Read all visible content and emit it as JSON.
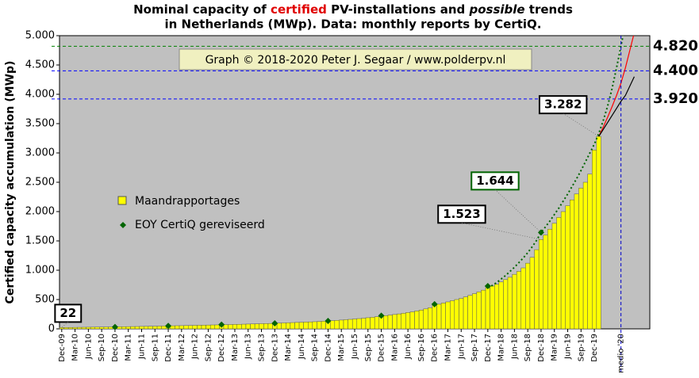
{
  "chart_data": {
    "type": "bar",
    "title": [
      "Nominal capacity of ",
      "certified",
      " PV-installations and ",
      "possible",
      " trends",
      "in Netherlands (MWp). Data: monthly reports by CertiQ."
    ],
    "y_label": "Certified capacity accumulation (MWp)",
    "watermark": "Graph © 2018-2020 Peter J. Segaar / www.polderpv.nl",
    "ylim": [
      0,
      5000
    ],
    "yticks": [
      0,
      500,
      {
        "value": 1000,
        "label": "1.000"
      },
      {
        "value": 1500,
        "label": "1.500"
      },
      {
        "value": 2000,
        "label": "2.000"
      },
      {
        "value": 2500,
        "label": "2.500"
      },
      {
        "value": 3000,
        "label": "3.000"
      },
      {
        "value": 3500,
        "label": "3.500"
      },
      {
        "value": 4000,
        "label": "4.000"
      },
      {
        "value": 4500,
        "label": "4.500"
      },
      {
        "value": 5000,
        "label": "5.000"
      }
    ],
    "categories": [
      "Dec-09",
      null,
      null,
      "Mar-10",
      null,
      null,
      "Jun-10",
      null,
      null,
      "Sep-10",
      null,
      null,
      "Dec-10",
      null,
      null,
      "Mar-11",
      null,
      null,
      "Jun-11",
      null,
      null,
      "Sep-11",
      null,
      null,
      "Dec-11",
      null,
      null,
      "Mar-12",
      null,
      null,
      "Jun-12",
      null,
      null,
      "Sep-12",
      null,
      null,
      "Dec-12",
      null,
      null,
      "Mar-13",
      null,
      null,
      "Jun-13",
      null,
      null,
      "Sep-13",
      null,
      null,
      "Dec-13",
      null,
      null,
      "Mar-14",
      null,
      null,
      "Jun-14",
      null,
      null,
      "Sep-14",
      null,
      null,
      "Dec-14",
      null,
      null,
      "Mar-15",
      null,
      null,
      "Jun-15",
      null,
      null,
      "Sep-15",
      null,
      null,
      "Dec-15",
      null,
      null,
      "Mar-16",
      null,
      null,
      "Jun-16",
      null,
      null,
      "Sep-16",
      null,
      null,
      "Dec-16",
      null,
      null,
      "Mar-17",
      null,
      null,
      "Jun-17",
      null,
      null,
      "Sep-17",
      null,
      null,
      "Dec-17",
      null,
      null,
      "Mar-18",
      null,
      null,
      "Jun-18",
      null,
      null,
      "Sep-18",
      null,
      null,
      "Dec-18",
      null,
      null,
      "Mar-19",
      null,
      null,
      "Jun-19",
      null,
      null,
      "Sep-19",
      null,
      null,
      "Dec-19",
      null,
      null,
      null,
      null,
      null,
      null,
      null,
      null,
      null,
      null,
      null,
      null
    ],
    "series": [
      {
        "name": "Maandrapportages",
        "color": "#ffff00",
        "values": [
          22,
          23,
          24,
          25,
          26,
          27,
          28,
          29,
          30,
          31,
          32,
          33,
          34,
          36,
          37,
          38,
          39,
          40,
          42,
          43,
          44,
          45,
          47,
          48,
          50,
          52,
          54,
          55,
          57,
          58,
          60,
          62,
          63,
          65,
          67,
          68,
          70,
          72,
          74,
          76,
          78,
          80,
          82,
          84,
          86,
          88,
          90,
          92,
          95,
          98,
          101,
          104,
          107,
          110,
          113,
          116,
          119,
          122,
          126,
          130,
          135,
          140,
          145,
          150,
          156,
          162,
          168,
          175,
          182,
          190,
          198,
          206,
          215,
          225,
          235,
          245,
          255,
          265,
          278,
          290,
          305,
          320,
          340,
          360,
          400,
          420,
          440,
          460,
          480,
          500,
          520,
          545,
          570,
          600,
          630,
          660,
          700,
          730,
          760,
          800,
          840,
          880,
          930,
          980,
          1040,
          1120,
          1220,
          1350,
          1523,
          1600,
          1700,
          1800,
          1900,
          2000,
          2100,
          2200,
          2300,
          2400,
          2500,
          2640,
          3050,
          3282,
          null,
          null,
          null,
          null,
          null,
          null,
          null,
          null,
          null,
          null,
          null
        ],
        "value_labels": [
          "22",
          null,
          null,
          null,
          null,
          null,
          null,
          null,
          null,
          null,
          null,
          null,
          null,
          null,
          null,
          null,
          null,
          null,
          null,
          null,
          null,
          null,
          null,
          null,
          null,
          null,
          null,
          null,
          null,
          null,
          null,
          null,
          null,
          null,
          null,
          null,
          null,
          null,
          null,
          null,
          null,
          null,
          null,
          null,
          null,
          null,
          null,
          null,
          null,
          null,
          null,
          null,
          null,
          null,
          null,
          null,
          null,
          null,
          null,
          null,
          null,
          null,
          null,
          null,
          null,
          null,
          null,
          null,
          null,
          null,
          null,
          null,
          null,
          null,
          null,
          null,
          null,
          null,
          null,
          null,
          null,
          null,
          null,
          null,
          null,
          null,
          null,
          null,
          null,
          null,
          null,
          null,
          null,
          null,
          null,
          null,
          null,
          null,
          null,
          null,
          null,
          null,
          null,
          null,
          null,
          null,
          null,
          null,
          "1.523",
          null,
          null,
          null,
          null,
          null,
          null,
          null,
          null,
          null,
          null,
          null,
          null,
          "3.282",
          null,
          null,
          null,
          null,
          null,
          null,
          null,
          null,
          null,
          null,
          null
        ]
      },
      {
        "name": "EOY CertiQ gereviseerd",
        "type": "scatter",
        "color": "#006400",
        "x": [
          "Dec-10",
          "Dec-11",
          "Dec-12",
          "Dec-13",
          "Dec-14",
          "Dec-15",
          "Dec-16",
          "Dec-17",
          "Dec-18"
        ],
        "values": [
          32,
          50,
          72,
          95,
          135,
          225,
          420,
          730,
          1644
        ],
        "value_labels": [
          null,
          null,
          null,
          null,
          null,
          null,
          null,
          null,
          "1.644"
        ]
      }
    ],
    "trends": [
      {
        "color": "#ff0000",
        "dash": "none",
        "values": [
          null,
          null,
          null,
          null,
          null,
          null,
          null,
          null,
          null,
          null,
          null,
          null,
          null,
          null,
          null,
          null,
          null,
          null,
          null,
          null,
          null,
          null,
          null,
          null,
          null,
          null,
          null,
          null,
          null,
          null,
          null,
          null,
          null,
          null,
          null,
          null,
          null,
          null,
          null,
          null,
          null,
          null,
          null,
          null,
          null,
          null,
          null,
          null,
          null,
          null,
          null,
          null,
          null,
          null,
          null,
          null,
          null,
          null,
          null,
          null,
          null,
          null,
          null,
          null,
          null,
          null,
          null,
          null,
          null,
          null,
          null,
          null,
          null,
          null,
          null,
          null,
          null,
          null,
          null,
          null,
          null,
          null,
          null,
          null,
          null,
          null,
          null,
          null,
          null,
          null,
          null,
          null,
          null,
          null,
          null,
          null,
          null,
          null,
          null,
          null,
          null,
          null,
          null,
          null,
          null,
          null,
          null,
          null,
          null,
          null,
          null,
          null,
          null,
          null,
          null,
          null,
          null,
          null,
          null,
          null,
          null,
          3282,
          3440,
          3610,
          3790,
          3980,
          4190,
          4450,
          4750,
          5050,
          null,
          null,
          null
        ]
      },
      {
        "color": "#000000",
        "dash": "none",
        "values": [
          null,
          null,
          null,
          null,
          null,
          null,
          null,
          null,
          null,
          null,
          null,
          null,
          null,
          null,
          null,
          null,
          null,
          null,
          null,
          null,
          null,
          null,
          null,
          null,
          null,
          null,
          null,
          null,
          null,
          null,
          null,
          null,
          null,
          null,
          null,
          null,
          null,
          null,
          null,
          null,
          null,
          null,
          null,
          null,
          null,
          null,
          null,
          null,
          null,
          null,
          null,
          null,
          null,
          null,
          null,
          null,
          null,
          null,
          null,
          null,
          null,
          null,
          null,
          null,
          null,
          null,
          null,
          null,
          null,
          null,
          null,
          null,
          null,
          null,
          null,
          null,
          null,
          null,
          null,
          null,
          null,
          null,
          null,
          null,
          null,
          null,
          null,
          null,
          null,
          null,
          null,
          null,
          null,
          null,
          null,
          null,
          null,
          null,
          null,
          null,
          null,
          null,
          null,
          null,
          null,
          null,
          null,
          null,
          null,
          null,
          null,
          null,
          null,
          null,
          null,
          null,
          null,
          null,
          null,
          null,
          null,
          3282,
          3400,
          3520,
          3640,
          3760,
          3880,
          3980,
          4140,
          4300,
          null,
          null,
          null
        ]
      },
      {
        "color": "#006400",
        "dash": "2,3",
        "values": [
          null,
          null,
          null,
          null,
          null,
          null,
          null,
          null,
          null,
          null,
          null,
          null,
          null,
          null,
          null,
          null,
          null,
          null,
          null,
          null,
          null,
          null,
          null,
          null,
          null,
          null,
          null,
          null,
          null,
          null,
          null,
          null,
          null,
          null,
          null,
          null,
          null,
          null,
          null,
          null,
          null,
          null,
          null,
          null,
          null,
          null,
          null,
          null,
          null,
          null,
          null,
          null,
          null,
          null,
          null,
          null,
          null,
          null,
          null,
          null,
          null,
          null,
          null,
          null,
          null,
          null,
          null,
          null,
          null,
          null,
          null,
          null,
          null,
          null,
          null,
          null,
          null,
          null,
          null,
          null,
          null,
          null,
          null,
          null,
          null,
          null,
          null,
          null,
          null,
          null,
          null,
          null,
          null,
          null,
          null,
          null,
          700,
          740,
          790,
          850,
          910,
          980,
          1050,
          1130,
          1210,
          1300,
          1400,
          1510,
          1644,
          1740,
          1840,
          1950,
          2060,
          2180,
          2300,
          2430,
          2560,
          2700,
          2850,
          3000,
          3150,
          3330,
          3550,
          3800,
          4100,
          4450,
          4820,
          5200,
          null,
          null,
          null,
          null,
          null
        ]
      }
    ],
    "hlines": [
      {
        "value": 4820,
        "label": "4.820",
        "color": "#008000",
        "label_color": "#006400"
      },
      {
        "value": 4400,
        "label": "4.400",
        "color": "#0000ff",
        "label_color": "#c00000"
      },
      {
        "value": 3920,
        "label": "3.920",
        "color": "#0000ff",
        "label_color": "#c00000"
      }
    ],
    "vline": {
      "x": 126,
      "label": "medio '20",
      "color": "#0000cc"
    },
    "plot_background": "#c0c0c0"
  }
}
